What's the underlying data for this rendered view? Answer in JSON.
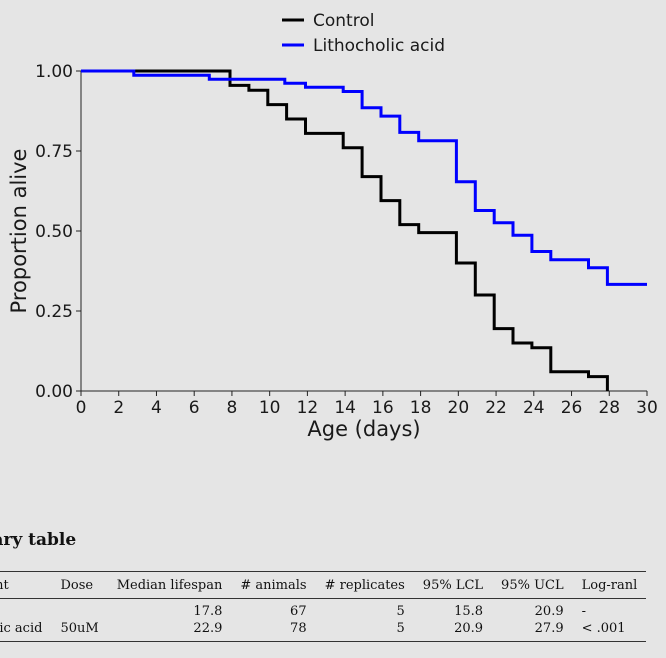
{
  "chart_data": {
    "type": "line",
    "xlabel": "Age (days)",
    "ylabel": "Proportion alive",
    "xlim": [
      0,
      30
    ],
    "ylim": [
      0,
      1
    ],
    "xticks": [
      "0",
      "2",
      "4",
      "6",
      "8",
      "10",
      "12",
      "14",
      "16",
      "18",
      "20",
      "22",
      "24",
      "26",
      "28",
      "30"
    ],
    "yticks": [
      "0.00",
      "0.25",
      "0.50",
      "0.75",
      "1.00"
    ],
    "legend_position": "top-center",
    "grid": false,
    "series": [
      {
        "name": "Control",
        "color": "#000000",
        "step": true,
        "x": [
          0,
          7.9,
          8.9,
          9.9,
          10.9,
          11.9,
          13.9,
          14.9,
          15.9,
          16.9,
          17.9,
          19.9,
          20.9,
          21.9,
          22.9,
          23.9,
          24.9,
          26.9,
          27.9
        ],
        "y": [
          1.0,
          0.955,
          0.94,
          0.895,
          0.85,
          0.805,
          0.76,
          0.67,
          0.595,
          0.52,
          0.495,
          0.4,
          0.3,
          0.195,
          0.15,
          0.135,
          0.06,
          0.045,
          0.0
        ]
      },
      {
        "name": "Lithocholic acid",
        "color": "#0000ff",
        "step": true,
        "x": [
          0,
          2.8,
          6.8,
          10.8,
          11.9,
          13.9,
          14.9,
          15.9,
          16.9,
          17.9,
          19.9,
          20.9,
          21.9,
          22.9,
          23.9,
          24.9,
          26.9,
          27.9,
          30
        ],
        "y": [
          1.0,
          0.987,
          0.974,
          0.962,
          0.949,
          0.936,
          0.885,
          0.859,
          0.808,
          0.782,
          0.654,
          0.564,
          0.526,
          0.487,
          0.436,
          0.41,
          0.385,
          0.333,
          0.333
        ]
      }
    ]
  },
  "summary": {
    "title": "nary table",
    "headers": [
      "nent",
      "Dose",
      "Median lifespan",
      "# animals",
      "# replicates",
      "95% LCL",
      "95% UCL",
      "Log-ranl"
    ],
    "rows": [
      [
        "ol",
        "",
        "17.8",
        "67",
        "5",
        "15.8",
        "20.9",
        "-"
      ],
      [
        "holic acid",
        "50uM",
        "22.9",
        "78",
        "5",
        "20.9",
        "27.9",
        "< .001"
      ]
    ]
  }
}
